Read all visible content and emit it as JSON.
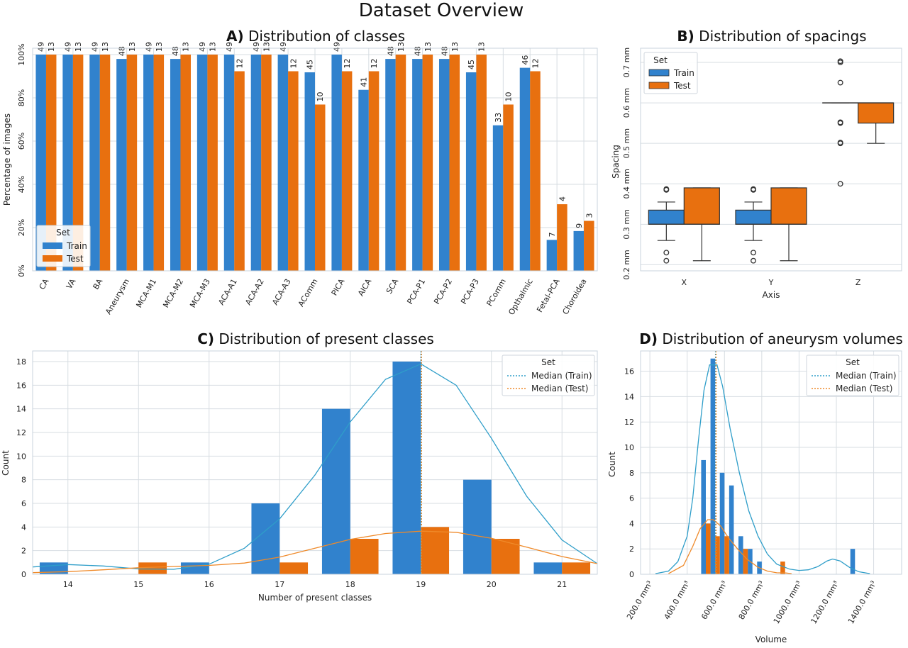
{
  "figure": {
    "title": "Dataset Overview"
  },
  "colors": {
    "train": "#3182cd",
    "test": "#e8700f",
    "kde_train": "#2f9ec9",
    "kde_test": "#ef8a2a",
    "grid": "#d7dde2"
  },
  "chart_data": [
    {
      "id": "A",
      "type": "bar",
      "title_prefix": "A)",
      "title": "Distribution of classes",
      "xlabel": "",
      "ylabel": "Percentage of images",
      "ylim": [
        0,
        100
      ],
      "yticks": [
        "0%",
        "20%",
        "40%",
        "60%",
        "80%",
        "100%"
      ],
      "legend": {
        "title": "Set",
        "placement": "lower-left",
        "entries": [
          "Train",
          "Test"
        ]
      },
      "categories": [
        "CA",
        "VA",
        "BA",
        "Aneurysm",
        "MCA-M1",
        "MCA-M2",
        "MCA-M3",
        "ACA-A1",
        "ACA-A2",
        "ACA-A3",
        "AComm",
        "PICA",
        "AICA",
        "SCA",
        "PCA-P1",
        "PCA-P2",
        "PCA-P3",
        "PComm",
        "Opthalmic",
        "Fetal-PCA",
        "Choroidea"
      ],
      "series": [
        {
          "name": "Train",
          "values": [
            100,
            100,
            100,
            98,
            100,
            98,
            100,
            100,
            100,
            100,
            91.8,
            100,
            83.7,
            98,
            98,
            98,
            91.8,
            67.3,
            93.9,
            14.3,
            18.4
          ],
          "labels": [
            "49",
            "49",
            "49",
            "48",
            "49",
            "48",
            "49",
            "49",
            "49",
            "49",
            "45",
            "49",
            "41",
            "48",
            "48",
            "48",
            "45",
            "33",
            "46",
            "7",
            "9"
          ]
        },
        {
          "name": "Test",
          "values": [
            100,
            100,
            100,
            100,
            100,
            100,
            100,
            92.3,
            100,
            92.3,
            76.9,
            92.3,
            92.3,
            100,
            100,
            100,
            100,
            76.9,
            92.3,
            30.8,
            23.1
          ],
          "labels": [
            "13",
            "13",
            "13",
            "13",
            "13",
            "13",
            "13",
            "12",
            "13",
            "12",
            "10",
            "12",
            "12",
            "13",
            "13",
            "13",
            "13",
            "10",
            "12",
            "4",
            "3"
          ]
        }
      ]
    },
    {
      "id": "B",
      "type": "box",
      "title_prefix": "B)",
      "title": "Distribution of spacings",
      "xlabel": "Axis",
      "ylabel": "Spacing",
      "ylim": [
        0.185,
        0.735
      ],
      "yticks": [
        "0.2 mm",
        "0.3 mm",
        "0.4 mm",
        "0.5 mm",
        "0.6 mm",
        "0.7 mm"
      ],
      "ytick_values": [
        0.2,
        0.3,
        0.4,
        0.5,
        0.6,
        0.7
      ],
      "categories": [
        "X",
        "Y",
        "Z"
      ],
      "legend": {
        "title": "Set",
        "placement": "top-left",
        "entries": [
          "Train",
          "Test"
        ]
      },
      "boxes": [
        {
          "axis": "X",
          "set": "Train",
          "whislo": 0.26,
          "q1": 0.3,
          "med": 0.3,
          "q3": 0.335,
          "whishi": 0.355,
          "fliers": [
            0.21,
            0.23,
            0.385,
            0.387
          ]
        },
        {
          "axis": "X",
          "set": "Test",
          "whislo": 0.21,
          "q1": 0.3,
          "med": 0.3,
          "q3": 0.39,
          "whishi": 0.39,
          "fliers": []
        },
        {
          "axis": "Y",
          "set": "Train",
          "whislo": 0.26,
          "q1": 0.3,
          "med": 0.3,
          "q3": 0.335,
          "whishi": 0.355,
          "fliers": [
            0.21,
            0.23,
            0.385,
            0.387
          ]
        },
        {
          "axis": "Y",
          "set": "Test",
          "whislo": 0.21,
          "q1": 0.3,
          "med": 0.3,
          "q3": 0.39,
          "whishi": 0.39,
          "fliers": []
        },
        {
          "axis": "Z",
          "set": "Train",
          "whislo": 0.6,
          "q1": 0.6,
          "med": 0.6,
          "q3": 0.6,
          "whishi": 0.6,
          "fliers": [
            0.4,
            0.5,
            0.502,
            0.55,
            0.552,
            0.65,
            0.7,
            0.703
          ]
        },
        {
          "axis": "Z",
          "set": "Test",
          "whislo": 0.5,
          "q1": 0.55,
          "med": 0.6,
          "q3": 0.6,
          "whishi": 0.6,
          "fliers": []
        }
      ]
    },
    {
      "id": "C",
      "type": "bar",
      "title_prefix": "C)",
      "title": "Distribution of present classes",
      "xlabel": "Number of present classes",
      "ylabel": "Count",
      "categories": [
        "14",
        "15",
        "16",
        "17",
        "18",
        "19",
        "20",
        "21"
      ],
      "ylim": [
        0,
        18.9
      ],
      "yticks": [
        "0",
        "2",
        "4",
        "6",
        "8",
        "10",
        "12",
        "14",
        "16",
        "18"
      ],
      "legend": {
        "title": "Set",
        "placement": "top-right",
        "entries": [
          "Median (Train)",
          "Median (Test)"
        ]
      },
      "series": [
        {
          "name": "Train",
          "values": [
            1,
            0,
            1,
            6,
            14,
            18,
            8,
            1
          ]
        },
        {
          "name": "Test",
          "values": [
            0,
            1,
            0,
            1,
            3,
            4,
            3,
            1
          ]
        }
      ],
      "kde": {
        "x_range": [
          13.5,
          21.5
        ],
        "train": [
          [
            13.5,
            0.62
          ],
          [
            14,
            0.82
          ],
          [
            14.5,
            0.7
          ],
          [
            15,
            0.45
          ],
          [
            15.5,
            0.42
          ],
          [
            16,
            0.85
          ],
          [
            16.5,
            2.2
          ],
          [
            17,
            4.7
          ],
          [
            17.5,
            8.4
          ],
          [
            18,
            12.9
          ],
          [
            18.5,
            16.5
          ],
          [
            19,
            17.8
          ],
          [
            19.5,
            16.0
          ],
          [
            20,
            11.5
          ],
          [
            20.5,
            6.6
          ],
          [
            21,
            2.9
          ],
          [
            21.5,
            0.9
          ]
        ],
        "test": [
          [
            13.5,
            0.14
          ],
          [
            14,
            0.22
          ],
          [
            14.5,
            0.38
          ],
          [
            15,
            0.55
          ],
          [
            15.5,
            0.66
          ],
          [
            16,
            0.75
          ],
          [
            16.5,
            0.95
          ],
          [
            17,
            1.45
          ],
          [
            17.5,
            2.2
          ],
          [
            18,
            2.95
          ],
          [
            18.5,
            3.45
          ],
          [
            19,
            3.65
          ],
          [
            19.5,
            3.55
          ],
          [
            20,
            3.05
          ],
          [
            20.5,
            2.3
          ],
          [
            21,
            1.5
          ],
          [
            21.5,
            0.9
          ]
        ]
      },
      "medians": {
        "train": 19,
        "test": 19
      }
    },
    {
      "id": "D",
      "type": "bar",
      "title_prefix": "D)",
      "title": "Distribution of aneurysm volumes",
      "xlabel": "Volume",
      "ylabel": "Count",
      "xlim": [
        150,
        1550
      ],
      "ylim": [
        0,
        17.6
      ],
      "xticks": [
        "200.0 mm³",
        "400.0 mm³",
        "600.0 mm³",
        "800.0 mm³",
        "1000.0 mm³",
        "1200.0 mm³",
        "1400.0 mm³"
      ],
      "xtick_values": [
        200,
        400,
        600,
        800,
        1000,
        1200,
        1400
      ],
      "yticks": [
        "0",
        "2",
        "4",
        "6",
        "8",
        "10",
        "12",
        "14",
        "16"
      ],
      "legend": {
        "title": "Set",
        "placement": "top-right",
        "entries": [
          "Median (Train)",
          "Median (Test)"
        ]
      },
      "series": [
        {
          "name": "Train",
          "bins": [
            [
              500,
              9
            ],
            [
              550,
              17
            ],
            [
              600,
              8
            ],
            [
              650,
              7
            ],
            [
              700,
              3
            ],
            [
              750,
              2
            ],
            [
              800,
              1
            ],
            [
              1300,
              2
            ]
          ]
        },
        {
          "name": "Test",
          "bins": [
            [
              500,
              4
            ],
            [
              550,
              3
            ],
            [
              600,
              3
            ],
            [
              700,
              2
            ],
            [
              900,
              1
            ]
          ]
        }
      ],
      "kde": {
        "train": [
          [
            230,
            0.05
          ],
          [
            300,
            0.25
          ],
          [
            350,
            1.0
          ],
          [
            400,
            3.0
          ],
          [
            430,
            6.0
          ],
          [
            460,
            10.5
          ],
          [
            490,
            14.5
          ],
          [
            520,
            16.5
          ],
          [
            560,
            16.5
          ],
          [
            590,
            14.8
          ],
          [
            630,
            11.5
          ],
          [
            680,
            8.0
          ],
          [
            730,
            5.0
          ],
          [
            780,
            3.0
          ],
          [
            830,
            1.6
          ],
          [
            880,
            0.8
          ],
          [
            950,
            0.4
          ],
          [
            1000,
            0.3
          ],
          [
            1050,
            0.35
          ],
          [
            1100,
            0.6
          ],
          [
            1150,
            1.05
          ],
          [
            1180,
            1.2
          ],
          [
            1220,
            1.05
          ],
          [
            1270,
            0.55
          ],
          [
            1320,
            0.2
          ],
          [
            1380,
            0.05
          ]
        ],
        "test": [
          [
            300,
            0.05
          ],
          [
            380,
            0.7
          ],
          [
            430,
            2.2
          ],
          [
            470,
            3.6
          ],
          [
            510,
            4.3
          ],
          [
            540,
            4.3
          ],
          [
            580,
            3.8
          ],
          [
            620,
            2.9
          ],
          [
            670,
            2.0
          ],
          [
            720,
            1.2
          ],
          [
            780,
            0.55
          ],
          [
            830,
            0.25
          ],
          [
            880,
            0.12
          ],
          [
            930,
            0.1
          ],
          [
            960,
            0.05
          ]
        ]
      },
      "medians": {
        "train": 552,
        "test": 555
      }
    }
  ]
}
